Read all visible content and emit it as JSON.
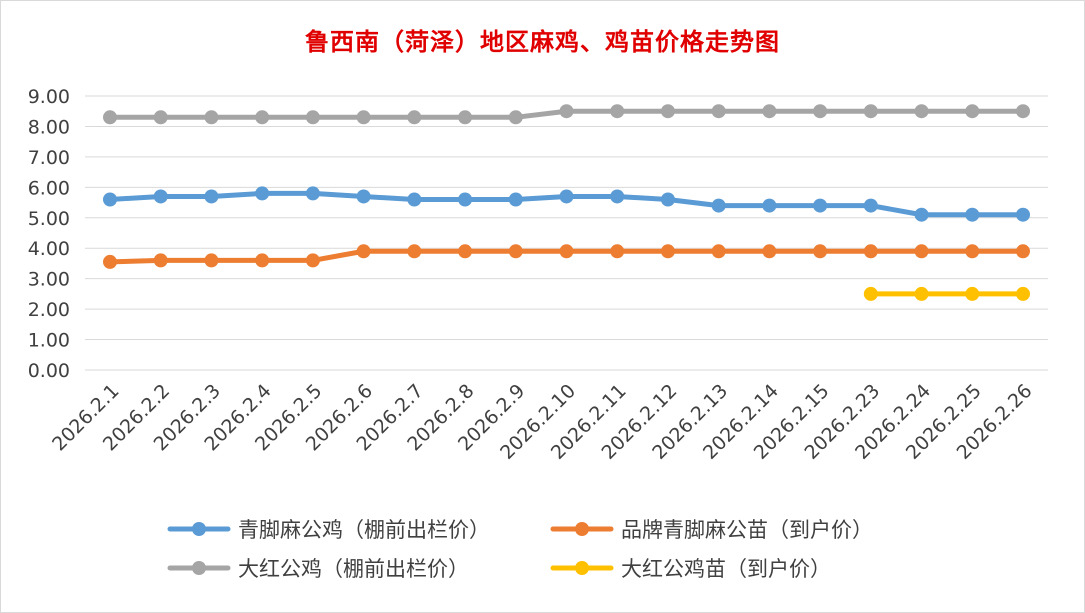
{
  "chart_data": {
    "type": "line",
    "title": "鲁西南（菏泽）地区麻鸡、鸡苗价格走势图",
    "xlabel": "",
    "ylabel": "",
    "ylim": [
      0,
      9
    ],
    "yticks": [
      "0.00",
      "1.00",
      "2.00",
      "3.00",
      "4.00",
      "5.00",
      "6.00",
      "7.00",
      "8.00",
      "9.00"
    ],
    "grid": true,
    "legend_position": "bottom",
    "categories": [
      "2026.2.1",
      "2026.2.2",
      "2026.2.3",
      "2026.2.4",
      "2026.2.5",
      "2026.2.6",
      "2026.2.7",
      "2026.2.8",
      "2026.2.9",
      "2026.2.10",
      "2026.2.11",
      "2026.2.12",
      "2026.2.13",
      "2026.2.14",
      "2026.2.15",
      "2026.2.23",
      "2026.2.24",
      "2026.2.25",
      "2026.2.26"
    ],
    "series": [
      {
        "name": "青脚麻公鸡（棚前出栏价）",
        "color": "#5b9bd5",
        "values": [
          5.6,
          5.7,
          5.7,
          5.8,
          5.8,
          5.7,
          5.6,
          5.6,
          5.6,
          5.7,
          5.7,
          5.6,
          5.4,
          5.4,
          5.4,
          5.4,
          5.1,
          5.1,
          5.1
        ]
      },
      {
        "name": "品牌青脚麻公苗（到户价）",
        "color": "#ed7d31",
        "values": [
          3.55,
          3.6,
          3.6,
          3.6,
          3.6,
          3.9,
          3.9,
          3.9,
          3.9,
          3.9,
          3.9,
          3.9,
          3.9,
          3.9,
          3.9,
          3.9,
          3.9,
          3.9,
          3.9
        ]
      },
      {
        "name": "大红公鸡（棚前出栏价）",
        "color": "#a5a5a5",
        "values": [
          8.3,
          8.3,
          8.3,
          8.3,
          8.3,
          8.3,
          8.3,
          8.3,
          8.3,
          8.5,
          8.5,
          8.5,
          8.5,
          8.5,
          8.5,
          8.5,
          8.5,
          8.5,
          8.5
        ]
      },
      {
        "name": "大红公鸡苗（到户价）",
        "color": "#ffc000",
        "values": [
          null,
          null,
          null,
          null,
          null,
          null,
          null,
          null,
          null,
          null,
          null,
          null,
          null,
          null,
          null,
          2.5,
          2.5,
          2.5,
          2.5
        ]
      }
    ]
  }
}
